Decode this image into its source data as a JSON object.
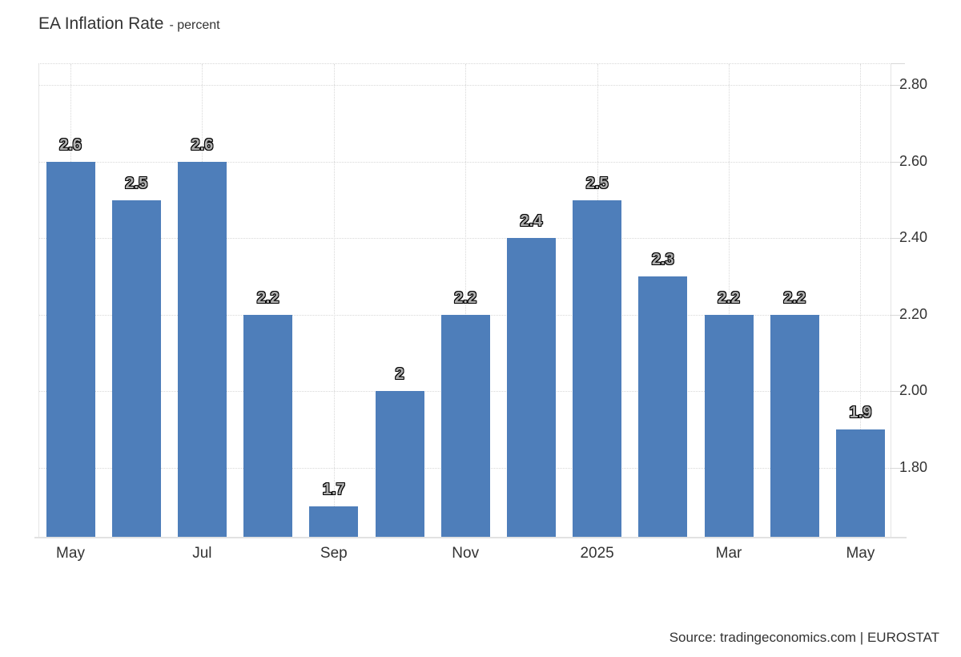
{
  "header": {
    "title": "EA Inflation Rate",
    "units": "- percent"
  },
  "footer": {
    "source": "Source: tradingeconomics.com | EUROSTAT"
  },
  "colors": {
    "bar": "#4e7eba",
    "grid": "#d8d8d8",
    "axis_text": "#333333",
    "value_label_fill": "#b0b0b0",
    "value_label_outline": "#000000",
    "value_label_halo": "#ffffff",
    "background": "#ffffff"
  },
  "chart_data": {
    "type": "bar",
    "title": "EA Inflation Rate - percent",
    "ylabel": "percent",
    "values": [
      2.6,
      2.5,
      2.6,
      2.2,
      1.7,
      2,
      2.2,
      2.4,
      2.5,
      2.3,
      2.2,
      2.2,
      1.9
    ],
    "value_labels": [
      "2.6",
      "2.5",
      "2.6",
      "2.2",
      "1.7",
      "2",
      "2.2",
      "2.4",
      "2.5",
      "2.3",
      "2.2",
      "2.2",
      "1.9"
    ],
    "x_ticks": [
      {
        "bar_index": 0,
        "label": "May"
      },
      {
        "bar_index": 2,
        "label": "Jul"
      },
      {
        "bar_index": 4,
        "label": "Sep"
      },
      {
        "bar_index": 6,
        "label": "Nov"
      },
      {
        "bar_index": 8,
        "label": "2025"
      },
      {
        "bar_index": 10,
        "label": "Mar"
      },
      {
        "bar_index": 12,
        "label": "May"
      }
    ],
    "y_ticks": [
      {
        "value": 1.8,
        "label": "1.80"
      },
      {
        "value": 2.0,
        "label": "2.00"
      },
      {
        "value": 2.2,
        "label": "2.20"
      },
      {
        "value": 2.4,
        "label": "2.40"
      },
      {
        "value": 2.6,
        "label": "2.60"
      },
      {
        "value": 2.8,
        "label": "2.80"
      }
    ],
    "ylim": [
      1.62,
      2.855
    ],
    "grid": "dotted",
    "legend": "none"
  }
}
